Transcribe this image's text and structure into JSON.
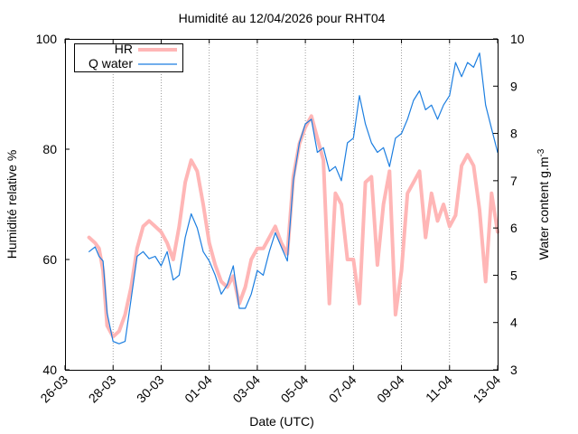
{
  "chart_data": {
    "type": "line",
    "title": "Humidité au 12/04/2026 pour RHT04",
    "xlabel": "Date (UTC)",
    "ylabel": "Humidité relative %",
    "y2label": "Water content g.m",
    "y2label_sup": "-3",
    "x_ticks": [
      "26-03",
      "28-03",
      "30-03",
      "01-04",
      "03-04",
      "05-04",
      "07-04",
      "09-04",
      "11-04",
      "13-04"
    ],
    "xlim": [
      "2026-03-26",
      "2026-04-13"
    ],
    "ylim": [
      40,
      100
    ],
    "y_ticks": [
      40,
      60,
      80,
      100
    ],
    "y2lim": [
      3,
      10
    ],
    "y2_ticks": [
      3,
      4,
      5,
      6,
      7,
      8,
      9,
      10
    ],
    "grid": "vertical dotted lines at date ticks",
    "legend_position": "top-left",
    "series": [
      {
        "name": "HR",
        "axis": "left",
        "color": "#ffb6b6",
        "x": [
          "2026-03-27T00:00",
          "2026-03-27T06:00",
          "2026-03-27T10:00",
          "2026-03-27T14:00",
          "2026-03-27T18:00",
          "2026-03-28T00:00",
          "2026-03-28T06:00",
          "2026-03-28T12:00",
          "2026-03-28T18:00",
          "2026-03-29T00:00",
          "2026-03-29T06:00",
          "2026-03-29T12:00",
          "2026-03-29T18:00",
          "2026-03-30T00:00",
          "2026-03-30T06:00",
          "2026-03-30T12:00",
          "2026-03-30T18:00",
          "2026-03-31T00:00",
          "2026-03-31T06:00",
          "2026-03-31T12:00",
          "2026-03-31T18:00",
          "2026-04-01T00:00",
          "2026-04-01T06:00",
          "2026-04-01T12:00",
          "2026-04-01T18:00",
          "2026-04-02T00:00",
          "2026-04-02T06:00",
          "2026-04-02T12:00",
          "2026-04-02T18:00",
          "2026-04-03T00:00",
          "2026-04-03T06:00",
          "2026-04-03T12:00",
          "2026-04-03T18:00",
          "2026-04-04T00:00",
          "2026-04-04T06:00",
          "2026-04-04T12:00",
          "2026-04-04T18:00",
          "2026-04-05T00:00",
          "2026-04-05T06:00",
          "2026-04-05T12:00",
          "2026-04-05T18:00",
          "2026-04-06T00:00",
          "2026-04-06T06:00",
          "2026-04-06T12:00",
          "2026-04-06T18:00",
          "2026-04-07T00:00",
          "2026-04-07T06:00",
          "2026-04-07T12:00",
          "2026-04-07T18:00",
          "2026-04-08T00:00",
          "2026-04-08T06:00",
          "2026-04-08T12:00",
          "2026-04-08T18:00",
          "2026-04-09T00:00",
          "2026-04-09T06:00",
          "2026-04-09T12:00",
          "2026-04-09T18:00",
          "2026-04-10T00:00",
          "2026-04-10T06:00",
          "2026-04-10T12:00",
          "2026-04-10T18:00",
          "2026-04-11T00:00",
          "2026-04-11T06:00",
          "2026-04-11T12:00",
          "2026-04-11T18:00",
          "2026-04-12T00:00",
          "2026-04-12T06:00",
          "2026-04-12T12:00",
          "2026-04-12T18:00",
          "2026-04-13T00:00"
        ],
        "values": [
          64,
          63,
          62,
          58,
          48,
          46,
          47,
          50,
          55,
          62,
          66,
          67,
          66,
          65,
          63,
          60,
          66,
          74,
          78,
          76,
          70,
          63,
          59,
          56,
          55,
          57,
          52,
          55,
          60,
          62,
          62,
          64,
          66,
          63,
          61,
          75,
          81,
          84,
          86,
          82,
          78,
          52,
          72,
          70,
          60,
          60,
          52,
          74,
          75,
          59,
          70,
          76,
          50,
          58,
          72,
          74,
          76,
          64,
          72,
          67,
          70,
          66,
          68,
          77,
          79,
          77,
          69,
          56,
          72,
          65
        ]
      },
      {
        "name": "Q water",
        "axis": "right",
        "color": "#1c7ee0",
        "x": [
          "2026-03-27T00:00",
          "2026-03-27T06:00",
          "2026-03-27T10:00",
          "2026-03-27T14:00",
          "2026-03-27T18:00",
          "2026-03-28T00:00",
          "2026-03-28T06:00",
          "2026-03-28T12:00",
          "2026-03-28T18:00",
          "2026-03-29T00:00",
          "2026-03-29T06:00",
          "2026-03-29T12:00",
          "2026-03-29T18:00",
          "2026-03-30T00:00",
          "2026-03-30T06:00",
          "2026-03-30T12:00",
          "2026-03-30T18:00",
          "2026-03-31T00:00",
          "2026-03-31T06:00",
          "2026-03-31T12:00",
          "2026-03-31T18:00",
          "2026-04-01T00:00",
          "2026-04-01T06:00",
          "2026-04-01T12:00",
          "2026-04-01T18:00",
          "2026-04-02T00:00",
          "2026-04-02T06:00",
          "2026-04-02T12:00",
          "2026-04-02T18:00",
          "2026-04-03T00:00",
          "2026-04-03T06:00",
          "2026-04-03T12:00",
          "2026-04-03T18:00",
          "2026-04-04T00:00",
          "2026-04-04T06:00",
          "2026-04-04T12:00",
          "2026-04-04T18:00",
          "2026-04-05T00:00",
          "2026-04-05T06:00",
          "2026-04-05T12:00",
          "2026-04-05T18:00",
          "2026-04-06T00:00",
          "2026-04-06T06:00",
          "2026-04-06T12:00",
          "2026-04-06T18:00",
          "2026-04-07T00:00",
          "2026-04-07T06:00",
          "2026-04-07T12:00",
          "2026-04-07T18:00",
          "2026-04-08T00:00",
          "2026-04-08T06:00",
          "2026-04-08T12:00",
          "2026-04-08T18:00",
          "2026-04-09T00:00",
          "2026-04-09T06:00",
          "2026-04-09T12:00",
          "2026-04-09T18:00",
          "2026-04-10T00:00",
          "2026-04-10T06:00",
          "2026-04-10T12:00",
          "2026-04-10T18:00",
          "2026-04-11T00:00",
          "2026-04-11T06:00",
          "2026-04-11T12:00",
          "2026-04-11T18:00",
          "2026-04-12T00:00",
          "2026-04-12T06:00",
          "2026-04-12T12:00",
          "2026-04-12T18:00",
          "2026-04-13T00:00"
        ],
        "values": [
          5.5,
          5.6,
          5.4,
          5.3,
          4.2,
          3.6,
          3.55,
          3.6,
          4.5,
          5.4,
          5.5,
          5.35,
          5.4,
          5.2,
          5.5,
          4.9,
          5.0,
          5.8,
          6.3,
          6.0,
          5.5,
          5.3,
          5.0,
          4.6,
          4.8,
          5.2,
          4.3,
          4.3,
          4.6,
          5.1,
          5.0,
          5.5,
          5.9,
          5.6,
          5.3,
          7.0,
          7.8,
          8.2,
          8.3,
          7.6,
          7.7,
          7.2,
          7.3,
          7.0,
          7.8,
          7.9,
          8.8,
          8.2,
          7.8,
          7.6,
          7.7,
          7.3,
          7.9,
          8.0,
          8.3,
          8.7,
          8.9,
          8.5,
          8.6,
          8.3,
          8.6,
          8.8,
          9.5,
          9.2,
          9.5,
          9.4,
          9.7,
          8.6,
          8.1,
          7.6
        ]
      }
    ]
  }
}
